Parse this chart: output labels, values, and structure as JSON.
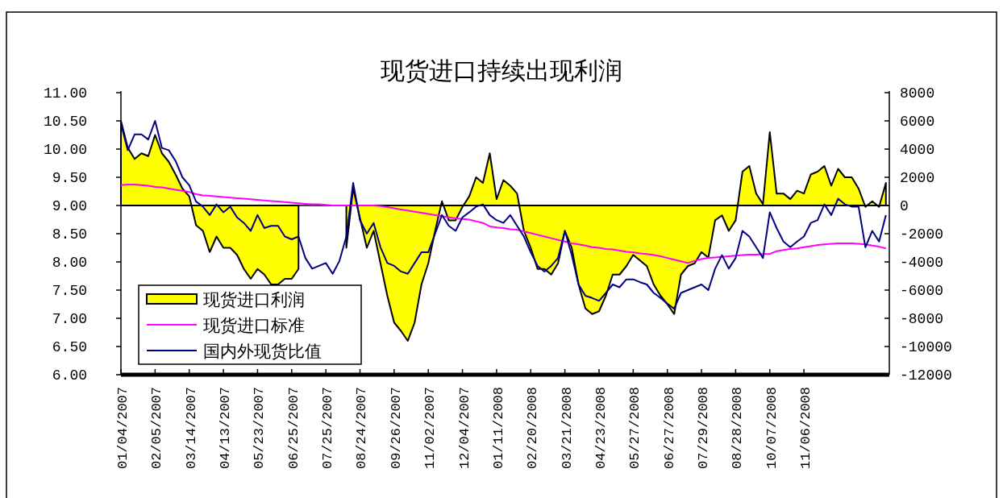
{
  "chart_data": {
    "type": "line",
    "title": "现货进口持续出现利润",
    "categories": [
      "01/04/2007",
      null,
      null,
      null,
      null,
      "02/05/2007",
      null,
      null,
      null,
      null,
      "03/14/2007",
      null,
      null,
      null,
      null,
      "04/13/2007",
      null,
      null,
      null,
      null,
      "05/23/2007",
      null,
      null,
      null,
      null,
      "06/25/2007",
      null,
      null,
      null,
      null,
      "07/25/2007",
      null,
      null,
      null,
      null,
      "08/24/2007",
      null,
      null,
      null,
      null,
      "09/26/2007",
      null,
      null,
      null,
      null,
      "11/02/2007",
      null,
      null,
      null,
      null,
      "12/04/2007",
      null,
      null,
      null,
      null,
      "01/11/2008",
      null,
      null,
      null,
      null,
      "02/20/2008",
      null,
      null,
      null,
      null,
      "03/21/2008",
      null,
      null,
      null,
      null,
      "04/23/2008",
      null,
      null,
      null,
      null,
      "05/27/2008",
      null,
      null,
      null,
      null,
      "06/27/2008",
      null,
      null,
      null,
      null,
      "07/29/2008",
      null,
      null,
      null,
      null,
      "08/28/2008",
      null,
      null,
      null,
      null,
      "10/07/2008",
      null,
      null,
      null,
      null,
      "11/06/2008",
      null,
      null,
      null,
      null,
      null,
      null,
      null,
      null,
      null,
      null,
      null,
      null
    ],
    "series": [
      {
        "name": "现货进口利润",
        "type": "area",
        "axis": "y2",
        "color": "#ffff00",
        "values": [
          6000,
          4100,
          3300,
          3700,
          3500,
          5000,
          3700,
          3100,
          2200,
          1200,
          650,
          -1400,
          -1800,
          -3300,
          -2200,
          -3000,
          -3000,
          -3500,
          -4500,
          -5200,
          -4500,
          -4900,
          -5600,
          -5600,
          -5200,
          -5200,
          -4500,
          null,
          null,
          null,
          null,
          null,
          null,
          -3000,
          1200,
          -900,
          -3000,
          -1800,
          -4100,
          -6400,
          -8300,
          -8900,
          -9600,
          -8300,
          -5600,
          -4100,
          -1800,
          300,
          -1050,
          -1050,
          -100,
          650,
          2000,
          1600,
          3700,
          450,
          1800,
          1400,
          850,
          -1800,
          -3000,
          -4500,
          -4500,
          -4900,
          -4100,
          -1800,
          -3000,
          -5600,
          -7300,
          -7700,
          -7500,
          -6400,
          -4900,
          -4900,
          -4300,
          -3500,
          -3900,
          -4300,
          -5600,
          -6400,
          -7000,
          -7700,
          -4900,
          -4300,
          -4100,
          -3300,
          -3700,
          -1050,
          -700,
          -1800,
          -1050,
          2400,
          2800,
          850,
          100,
          5200,
          850,
          850,
          450,
          1050,
          850,
          2200,
          2400,
          2800,
          1400,
          2600,
          2000,
          2000,
          1200,
          -100,
          300,
          -100,
          1600
        ]
      },
      {
        "name": "现货进口标准",
        "color": "#ff00ff",
        "values": [
          9.36,
          9.37,
          9.37,
          9.36,
          9.35,
          9.33,
          9.32,
          9.3,
          9.28,
          9.26,
          9.24,
          9.2,
          9.18,
          9.17,
          9.16,
          9.15,
          9.14,
          9.13,
          9.12,
          9.11,
          9.1,
          9.09,
          9.08,
          9.07,
          9.06,
          9.05,
          9.04,
          9.03,
          9.02,
          9.02,
          9.01,
          9.0,
          9.0,
          9.0,
          9.0,
          9.0,
          9.0,
          9.0,
          8.99,
          8.97,
          8.95,
          8.93,
          8.91,
          8.89,
          8.87,
          8.85,
          8.83,
          8.81,
          8.79,
          8.77,
          8.76,
          8.75,
          8.72,
          8.69,
          8.63,
          8.61,
          8.6,
          8.58,
          8.57,
          8.54,
          8.51,
          8.48,
          8.45,
          8.42,
          8.39,
          8.36,
          8.33,
          8.31,
          8.29,
          8.26,
          8.25,
          8.23,
          8.22,
          8.2,
          8.18,
          8.17,
          8.15,
          8.14,
          8.12,
          8.1,
          8.07,
          8.04,
          8.01,
          7.98,
          8.02,
          8.05,
          8.07,
          8.08,
          8.09,
          8.1,
          8.11,
          8.12,
          8.13,
          8.13,
          8.14,
          8.14,
          8.19,
          8.21,
          8.23,
          8.24,
          8.26,
          8.28,
          8.3,
          8.31,
          8.32,
          8.33,
          8.33,
          8.33,
          8.32,
          8.31,
          8.29,
          8.27,
          8.24
        ]
      },
      {
        "name": "国内外现货比值",
        "color": "#000080",
        "values": [
          10.45,
          9.98,
          10.26,
          10.26,
          10.17,
          10.5,
          10.02,
          9.98,
          9.79,
          9.5,
          9.36,
          9.07,
          8.98,
          8.83,
          9.02,
          8.88,
          8.98,
          8.79,
          8.69,
          8.55,
          8.83,
          8.6,
          8.64,
          8.64,
          8.45,
          8.4,
          8.45,
          8.07,
          7.88,
          7.93,
          7.98,
          7.79,
          8.02,
          8.45,
          9.4,
          8.74,
          8.5,
          8.69,
          8.26,
          7.98,
          7.93,
          7.83,
          7.79,
          7.98,
          8.17,
          8.17,
          8.5,
          8.83,
          8.64,
          8.55,
          8.79,
          8.88,
          8.98,
          9.02,
          8.83,
          8.74,
          8.69,
          8.83,
          8.64,
          8.45,
          8.17,
          7.93,
          7.83,
          7.93,
          8.07,
          8.55,
          8.12,
          7.6,
          7.4,
          7.36,
          7.31,
          7.45,
          7.6,
          7.55,
          7.69,
          7.69,
          7.64,
          7.6,
          7.45,
          7.36,
          7.26,
          7.17,
          7.45,
          7.5,
          7.55,
          7.6,
          7.5,
          7.88,
          8.12,
          7.88,
          8.07,
          8.55,
          8.45,
          8.26,
          8.07,
          8.88,
          8.6,
          8.36,
          8.26,
          8.36,
          8.45,
          8.69,
          8.74,
          9.02,
          8.83,
          9.12,
          9.02,
          8.98,
          8.98,
          8.26,
          8.55,
          8.36,
          8.83
        ]
      }
    ],
    "ylim": [
      6,
      11
    ],
    "yticks": [
      {
        "value": 6,
        "label": "6.00"
      },
      {
        "value": 6.5,
        "label": "6.50"
      },
      {
        "value": 7,
        "label": "7.00"
      },
      {
        "value": 7.5,
        "label": "7.50"
      },
      {
        "value": 8,
        "label": "8.00"
      },
      {
        "value": 8.5,
        "label": "8.50"
      },
      {
        "value": 9,
        "label": "9.00"
      },
      {
        "value": 9.5,
        "label": "9.50"
      },
      {
        "value": 10,
        "label": "10.00"
      },
      {
        "value": 10.5,
        "label": "10.50"
      },
      {
        "value": 11,
        "label": "11.00"
      }
    ],
    "y2lim": [
      -12000,
      8000
    ],
    "y2ticks": [
      -12000,
      -10000,
      -8000,
      -6000,
      -4000,
      -2000,
      0,
      2000,
      4000,
      6000,
      8000
    ],
    "ref_lines": [
      {
        "axis": "y2",
        "value": 0,
        "color": "#000000"
      }
    ],
    "legend": "bottom left"
  }
}
